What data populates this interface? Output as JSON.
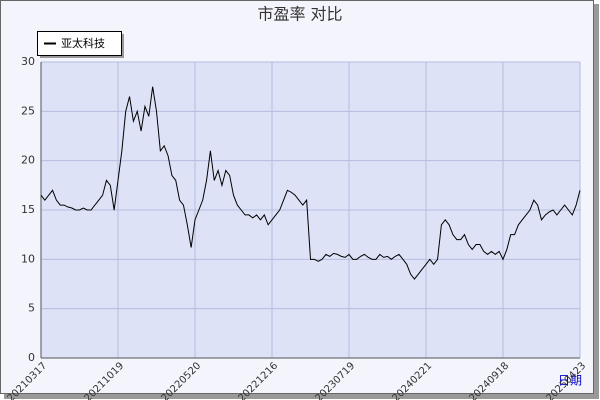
{
  "chart_data": {
    "type": "line",
    "title": "市盈率  对比",
    "x_label": "日期",
    "categories": [
      "20210317",
      null,
      null,
      null,
      null,
      null,
      null,
      null,
      null,
      null,
      null,
      null,
      null,
      null,
      null,
      null,
      null,
      null,
      null,
      null,
      "20211019",
      null,
      null,
      null,
      null,
      null,
      null,
      null,
      null,
      null,
      null,
      null,
      null,
      null,
      null,
      null,
      null,
      null,
      null,
      null,
      "20220520",
      null,
      null,
      null,
      null,
      null,
      null,
      null,
      null,
      null,
      null,
      null,
      null,
      null,
      null,
      null,
      null,
      null,
      null,
      null,
      "20221216",
      null,
      null,
      null,
      null,
      null,
      null,
      null,
      null,
      null,
      null,
      null,
      null,
      null,
      null,
      null,
      null,
      null,
      null,
      null,
      "20230719",
      null,
      null,
      null,
      null,
      null,
      null,
      null,
      null,
      null,
      null,
      null,
      null,
      null,
      null,
      null,
      null,
      null,
      null,
      null,
      "20240221",
      null,
      null,
      null,
      null,
      null,
      null,
      null,
      null,
      null,
      null,
      null,
      null,
      null,
      null,
      null,
      null,
      null,
      null,
      null,
      "20240918",
      null,
      null,
      null,
      null,
      null,
      null,
      null,
      null,
      null,
      null,
      null,
      null,
      null,
      null,
      null,
      null,
      null,
      null,
      null,
      "20250423"
    ],
    "series": [
      {
        "name": "亚太科技",
        "color": "#000000",
        "values": [
          16.5,
          16,
          16.5,
          17,
          16,
          15.5,
          15.5,
          15.3,
          15.2,
          15,
          15,
          15.2,
          15,
          15,
          15.5,
          16,
          16.5,
          18,
          17.5,
          15,
          18,
          21,
          25,
          26.5,
          24,
          25,
          23,
          25.5,
          24.5,
          27.5,
          25,
          21,
          21.5,
          20.5,
          18.5,
          18,
          16,
          15.5,
          13.5,
          11.2,
          14,
          15,
          16,
          18,
          21,
          18,
          19,
          17.5,
          19,
          18.5,
          16.5,
          15.5,
          15,
          14.5,
          14.5,
          14.2,
          14.5,
          14,
          14.5,
          13.5,
          14,
          14.5,
          15,
          16,
          17,
          16.8,
          16.5,
          16,
          15.5,
          16,
          10,
          10,
          9.8,
          10,
          10.5,
          10.3,
          10.6,
          10.5,
          10.3,
          10.2,
          10.5,
          10,
          10,
          10.3,
          10.5,
          10.2,
          10,
          10,
          10.5,
          10.2,
          10.3,
          10,
          10.3,
          10.5,
          10,
          9.5,
          8.5,
          8,
          8.5,
          9,
          9.5,
          10,
          9.5,
          10,
          13.5,
          14,
          13.5,
          12.5,
          12,
          12,
          12.5,
          11.5,
          11,
          11.5,
          11.5,
          10.8,
          10.5,
          10.8,
          10.5,
          10.8,
          10,
          11,
          12.5,
          12.5,
          13.5,
          14,
          14.5,
          15,
          16,
          15.5,
          14,
          14.5,
          14.8,
          15,
          14.5,
          15,
          15.5,
          15,
          14.5,
          15.5,
          17
        ]
      }
    ],
    "ylim": [
      0,
      30
    ],
    "yticks": [
      0,
      5,
      10,
      15,
      20,
      25,
      30
    ],
    "grid": true
  }
}
